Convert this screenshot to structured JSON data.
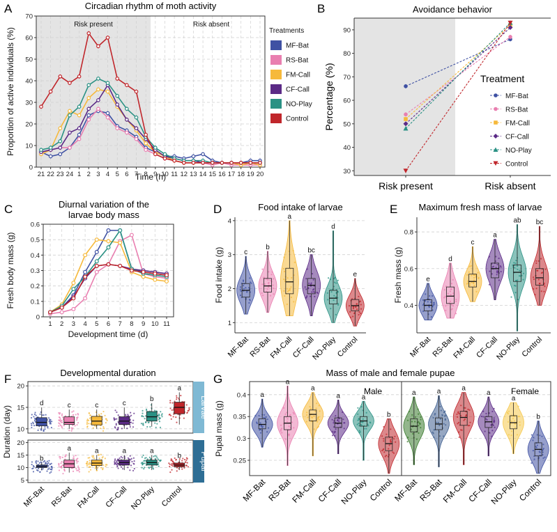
{
  "figure": {
    "panel_labels": [
      "A",
      "B",
      "C",
      "D",
      "E",
      "F",
      "G"
    ],
    "colors": {
      "MF-Bat": "#3f51a3",
      "RS-Bat": "#e97fb0",
      "FM-Call": "#f6b93b",
      "CF-Call": "#5b2a86",
      "NO-Play": "#2a9184",
      "Control": "#c0262b"
    }
  },
  "chart_data": [
    {
      "id": "A",
      "type": "line",
      "title": "Circadian rhythm of moth activity",
      "xlabel": "Time (h)",
      "ylabel": "Proportion of active individuals (%)",
      "ylim": [
        0,
        70
      ],
      "yticks": [
        0,
        10,
        20,
        30,
        40,
        50,
        60,
        70
      ],
      "categories": [
        "21",
        "22",
        "23",
        "24",
        "1",
        "2",
        "3",
        "4",
        "5",
        "6",
        "7",
        "8",
        "9",
        "10",
        "11",
        "12",
        "13",
        "14",
        "15",
        "16",
        "17",
        "18",
        "19",
        "20"
      ],
      "regions": [
        "Risk present",
        "Risk absent"
      ],
      "legend_title": "Treatments",
      "series": [
        {
          "name": "MF-Bat",
          "values": [
            7,
            5,
            6,
            9,
            15,
            24,
            26,
            25,
            19,
            17,
            14,
            9,
            7,
            5,
            5,
            4,
            5,
            6,
            3,
            2,
            2,
            2,
            3,
            3
          ]
        },
        {
          "name": "RS-Bat",
          "values": [
            6,
            8,
            9,
            9,
            13,
            22,
            27,
            23,
            18,
            16,
            13,
            8,
            6,
            4,
            3,
            2,
            2,
            2,
            1,
            2,
            1,
            1,
            1,
            1
          ]
        },
        {
          "name": "FM-Call",
          "values": [
            6,
            8,
            18,
            26,
            24,
            32,
            36,
            35,
            28,
            22,
            17,
            11,
            7,
            5,
            3,
            2,
            2,
            2,
            2,
            2,
            2,
            1,
            2,
            1
          ]
        },
        {
          "name": "CF-Call",
          "values": [
            7,
            8,
            9,
            16,
            18,
            27,
            31,
            38,
            29,
            22,
            18,
            13,
            8,
            5,
            4,
            3,
            3,
            2,
            2,
            2,
            2,
            2,
            2,
            2
          ]
        },
        {
          "name": "NO-Play",
          "values": [
            8,
            9,
            12,
            24,
            28,
            38,
            41,
            39,
            33,
            27,
            23,
            14,
            9,
            6,
            4,
            3,
            3,
            3,
            2,
            2,
            2,
            2,
            2,
            2
          ]
        },
        {
          "name": "Control",
          "values": [
            28,
            35,
            42,
            39,
            42,
            62,
            56,
            60,
            41,
            38,
            35,
            15,
            6,
            4,
            3,
            2,
            2,
            2,
            2,
            2,
            2,
            2,
            2,
            2
          ]
        }
      ]
    },
    {
      "id": "B",
      "type": "scatter",
      "title": "Avoidance behavior",
      "xlabel": "",
      "ylabel": "Percentage (%)",
      "ylim": [
        28,
        95
      ],
      "yticks": [
        30,
        40,
        50,
        60,
        70,
        80,
        90
      ],
      "categories": [
        "Risk present",
        "Risk absent"
      ],
      "legend_title": "Treatment",
      "series": [
        {
          "name": "MF-Bat",
          "values": [
            66,
            86
          ]
        },
        {
          "name": "RS-Bat",
          "values": [
            54,
            87
          ]
        },
        {
          "name": "FM-Call",
          "values": [
            52,
            92
          ]
        },
        {
          "name": "CF-Call",
          "values": [
            50,
            91
          ]
        },
        {
          "name": "NO-Play",
          "values": [
            48,
            93
          ]
        },
        {
          "name": "Control",
          "values": [
            30,
            93
          ]
        }
      ]
    },
    {
      "id": "C",
      "type": "line",
      "title": "Diurnal variation of the larvae body mass",
      "xlabel": "Development time (d)",
      "ylabel": "Fresh body mass (g)",
      "ylim": [
        0,
        0.6
      ],
      "yticks": [
        0,
        0.1,
        0.2,
        0.3,
        0.4,
        0.5,
        0.6
      ],
      "categories": [
        "1",
        "2",
        "3",
        "4",
        "5",
        "6",
        "7",
        "8",
        "9",
        "10",
        "11"
      ],
      "series": [
        {
          "name": "MF-Bat",
          "values": [
            0.03,
            0.06,
            0.14,
            0.29,
            0.42,
            0.56,
            0.56,
            0.31,
            0.29,
            0.28,
            0.27
          ]
        },
        {
          "name": "RS-Bat",
          "values": [
            0.02,
            0.03,
            0.05,
            0.12,
            0.29,
            0.34,
            0.49,
            0.53,
            0.28,
            0.26,
            0.25
          ]
        },
        {
          "name": "FM-Call",
          "values": [
            0.03,
            0.08,
            0.22,
            0.4,
            0.5,
            0.49,
            0.48,
            0.29,
            0.26,
            0.24,
            0.23
          ]
        },
        {
          "name": "CF-Call",
          "values": [
            0.03,
            0.06,
            0.13,
            0.25,
            0.33,
            0.34,
            0.33,
            0.31,
            0.3,
            0.29,
            0.28
          ]
        },
        {
          "name": "NO-Play",
          "values": [
            0.03,
            0.07,
            0.18,
            0.26,
            0.36,
            0.45,
            0.56,
            0.31,
            0.28,
            0.27,
            0.26
          ]
        },
        {
          "name": "Control",
          "values": [
            0.03,
            0.06,
            0.12,
            0.26,
            0.33,
            0.34,
            0.33,
            0.3,
            0.29,
            0.28,
            0.27
          ]
        }
      ]
    },
    {
      "id": "D",
      "type": "violin",
      "title": "Food intake of larvae",
      "xlabel": "",
      "ylabel": "Food intake (g)",
      "ylim": [
        0.7,
        4.1
      ],
      "yticks": [
        1,
        2,
        3,
        4
      ],
      "categories": [
        "MF-Bat",
        "RS-Bat",
        "FM-Call",
        "CF-Call",
        "NO-Play",
        "Control"
      ],
      "letters": [
        "c",
        "b",
        "a",
        "bc",
        "d",
        "e"
      ],
      "stats": [
        {
          "min": 1.25,
          "q1": 1.75,
          "median": 1.95,
          "q3": 2.15,
          "max": 2.95
        },
        {
          "min": 1.3,
          "q1": 1.9,
          "median": 2.08,
          "q3": 2.3,
          "max": 3.1
        },
        {
          "min": 1.2,
          "q1": 1.85,
          "median": 2.2,
          "q3": 2.6,
          "max": 4.0
        },
        {
          "min": 1.2,
          "q1": 1.85,
          "median": 2.1,
          "q3": 2.3,
          "max": 3.0
        },
        {
          "min": 1.0,
          "q1": 1.55,
          "median": 1.72,
          "q3": 1.95,
          "max": 3.7
        },
        {
          "min": 0.9,
          "q1": 1.35,
          "median": 1.5,
          "q3": 1.68,
          "max": 2.3
        }
      ]
    },
    {
      "id": "E",
      "type": "violin",
      "title": "Maximum fresh mass of larvae",
      "xlabel": "",
      "ylabel": "Fresh mass (g)",
      "ylim": [
        0.25,
        0.88
      ],
      "yticks": [
        0.4,
        0.6,
        0.8
      ],
      "categories": [
        "MF-Bat",
        "RS-Bat",
        "FM-Call",
        "CF-Call",
        "NO-Play",
        "Control"
      ],
      "letters": [
        "e",
        "d",
        "c",
        "a",
        "ab",
        "bc"
      ],
      "stats": [
        {
          "min": 0.32,
          "q1": 0.37,
          "median": 0.4,
          "q3": 0.43,
          "max": 0.52
        },
        {
          "min": 0.33,
          "q1": 0.41,
          "median": 0.45,
          "q3": 0.5,
          "max": 0.63
        },
        {
          "min": 0.42,
          "q1": 0.5,
          "median": 0.53,
          "q3": 0.57,
          "max": 0.72
        },
        {
          "min": 0.43,
          "q1": 0.55,
          "median": 0.6,
          "q3": 0.63,
          "max": 0.76
        },
        {
          "min": 0.26,
          "q1": 0.53,
          "median": 0.58,
          "q3": 0.62,
          "max": 0.84
        },
        {
          "min": 0.4,
          "q1": 0.51,
          "median": 0.55,
          "q3": 0.6,
          "max": 0.83
        }
      ]
    },
    {
      "id": "F",
      "type": "boxplot",
      "title": "Developmental duration",
      "xlabel": "",
      "ylabel": "Duration (day)",
      "categories": [
        "MF-Bat",
        "RS-Bat",
        "FM-Call",
        "CF-Call",
        "NO-Play",
        "Control"
      ],
      "facets": [
        {
          "name": "Larvae",
          "ylim": [
            9,
            21
          ],
          "yticks": [
            10,
            15,
            20
          ],
          "letters": [
            "d",
            "c",
            "c",
            "c",
            "b",
            "a"
          ],
          "stats": [
            {
              "min": 10,
              "q1": 10.7,
              "median": 11.5,
              "q3": 12.6,
              "max": 15
            },
            {
              "min": 10,
              "q1": 11.0,
              "median": 11.5,
              "q3": 12.8,
              "max": 14.5
            },
            {
              "min": 10,
              "q1": 10.9,
              "median": 11.8,
              "q3": 12.9,
              "max": 14.5
            },
            {
              "min": 10,
              "q1": 11.0,
              "median": 11.8,
              "q3": 12.8,
              "max": 15
            },
            {
              "min": 10.5,
              "q1": 11.8,
              "median": 12.8,
              "q3": 14.0,
              "max": 16
            },
            {
              "min": 11,
              "q1": 13.5,
              "median": 15.0,
              "q3": 16.2,
              "max": 18.5
            }
          ]
        },
        {
          "name": "Pupal",
          "ylim": [
            4,
            21
          ],
          "yticks": [
            5,
            10,
            15,
            20
          ],
          "letters": [
            "b",
            "a",
            "a",
            "a",
            "a",
            "b"
          ],
          "stats": [
            {
              "min": 9,
              "q1": 10.0,
              "median": 10.5,
              "q3": 11.0,
              "max": 12
            },
            {
              "min": 8,
              "q1": 10.0,
              "median": 11.5,
              "q3": 13.0,
              "max": 16
            },
            {
              "min": 9,
              "q1": 10.8,
              "median": 11.8,
              "q3": 13.0,
              "max": 15
            },
            {
              "min": 9,
              "q1": 11.0,
              "median": 12.0,
              "q3": 13.0,
              "max": 15
            },
            {
              "min": 9,
              "q1": 11.0,
              "median": 12.0,
              "q3": 13.0,
              "max": 15
            },
            {
              "min": 9,
              "q1": 10.3,
              "median": 11.0,
              "q3": 11.8,
              "max": 13
            }
          ]
        }
      ]
    },
    {
      "id": "G",
      "type": "violin",
      "title": "Mass of male and female pupae",
      "xlabel": "",
      "ylabel": "Pupal mass (g)",
      "ylim": [
        0.215,
        0.43
      ],
      "yticks": [
        0.25,
        0.3,
        0.35,
        0.4
      ],
      "facets": [
        {
          "name": "Male",
          "categories": [
            "MF-Bat",
            "RS-Bat",
            "FM-Call",
            "CF-Call",
            "NO-Play",
            "Control"
          ],
          "letters": [
            "a",
            "a",
            "a",
            "a",
            "a",
            "b"
          ],
          "stats": [
            {
              "min": 0.28,
              "q1": 0.322,
              "median": 0.332,
              "q3": 0.345,
              "max": 0.39
            },
            {
              "min": 0.238,
              "q1": 0.32,
              "median": 0.335,
              "q3": 0.35,
              "max": 0.42
            },
            {
              "min": 0.26,
              "q1": 0.34,
              "median": 0.355,
              "q3": 0.365,
              "max": 0.405
            },
            {
              "min": 0.265,
              "q1": 0.325,
              "median": 0.335,
              "q3": 0.347,
              "max": 0.388
            },
            {
              "min": 0.25,
              "q1": 0.328,
              "median": 0.34,
              "q3": 0.35,
              "max": 0.385
            },
            {
              "min": 0.22,
              "q1": 0.272,
              "median": 0.288,
              "q3": 0.303,
              "max": 0.345
            }
          ]
        },
        {
          "name": "Female",
          "categories": [
            "MF-Bat",
            "RS-Bat",
            "FM-Call",
            "CF-Call",
            "NO-Play",
            "Control"
          ],
          "letters": [
            "a",
            "a",
            "a",
            "a",
            "a",
            "b"
          ],
          "stats": [
            {
              "min": 0.24,
              "q1": 0.315,
              "median": 0.328,
              "q3": 0.345,
              "max": 0.395
            },
            {
              "min": 0.235,
              "q1": 0.32,
              "median": 0.333,
              "q3": 0.347,
              "max": 0.398
            },
            {
              "min": 0.24,
              "q1": 0.33,
              "median": 0.348,
              "q3": 0.362,
              "max": 0.405
            },
            {
              "min": 0.26,
              "q1": 0.325,
              "median": 0.338,
              "q3": 0.35,
              "max": 0.395
            },
            {
              "min": 0.265,
              "q1": 0.322,
              "median": 0.336,
              "q3": 0.352,
              "max": 0.382
            },
            {
              "min": 0.22,
              "q1": 0.26,
              "median": 0.275,
              "q3": 0.29,
              "max": 0.34
            }
          ]
        }
      ]
    }
  ]
}
